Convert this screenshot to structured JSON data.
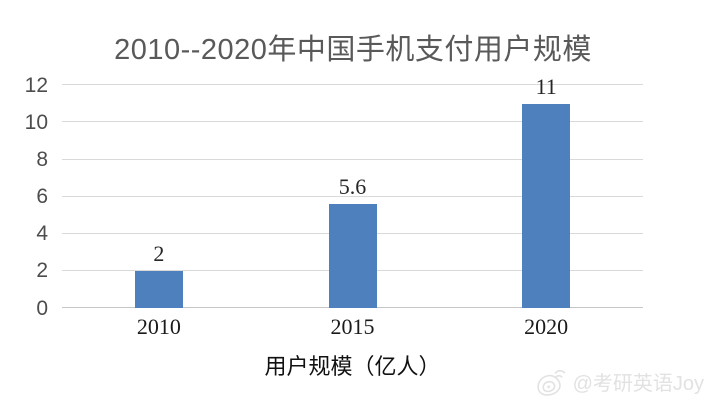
{
  "chart_data": {
    "type": "bar",
    "title": "2010--2020年中国手机支付用户规模",
    "categories": [
      "2010",
      "2015",
      "2020"
    ],
    "values": [
      2,
      5.6,
      11
    ],
    "value_labels": [
      "2",
      "5.6",
      "11"
    ],
    "xlabel": "用户规模（亿人）",
    "ylabel": "",
    "ylim": [
      0,
      12
    ],
    "yticks": [
      0,
      2,
      4,
      6,
      8,
      10,
      12
    ],
    "grid": true,
    "legend": "none",
    "bar_color": "#4d80bc"
  },
  "watermark": {
    "icon": "weibo-icon",
    "text": "@考研英语Joy"
  },
  "colors": {
    "bar": "#4d80bc",
    "grid": "#d9d9d9",
    "baseline": "#c6c6c6",
    "title_text": "#595959",
    "ytick_text": "#4d4d4d",
    "xtick_text": "#1a1a1a",
    "value_text": "#262626",
    "axis_title_text": "#111111",
    "watermark_text": "#e2e2e2"
  }
}
